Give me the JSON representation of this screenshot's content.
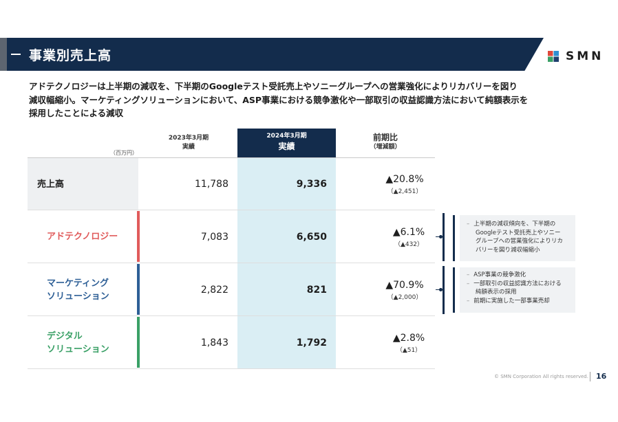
{
  "header": {
    "title": "事業別売上高"
  },
  "brand": {
    "name": "SMN",
    "colors": [
      "#e0483b",
      "#2e8fd1",
      "#3aa066",
      "#1f3f6e"
    ]
  },
  "lead": [
    "アドテクノロジーは上半期の減収を、下半期のGoogleテスト受託売上やソニーグループへの営業強化によりリカバリーを図り",
    "減収幅縮小。マーケティングソリューションにおいて、ASP事業における競争激化や一部取引の収益認識方法において純額表示を",
    "採用したことによる減収"
  ],
  "table": {
    "unit": "（百万円）",
    "col1": {
      "line1": "2023年3月期",
      "line2": "実績"
    },
    "col2": {
      "line1": "2024年3月期",
      "line2": "実績"
    },
    "col3": {
      "line1": "前期比",
      "line2": "（増減額）"
    },
    "rows": [
      {
        "label1": "売上高",
        "label2": "",
        "prev": "11,788",
        "curr": "9,336",
        "pct": "▲20.8%",
        "diff": "（▲2,451）",
        "color": "#1e1e1e"
      },
      {
        "label1": "アドテクノロジー",
        "label2": "",
        "prev": "7,083",
        "curr": "6,650",
        "pct": "▲6.1%",
        "diff": "（▲432）",
        "color": "#e05b5b"
      },
      {
        "label1": "マーケティング",
        "label2": "ソリューション",
        "prev": "2,822",
        "curr": "821",
        "pct": "▲70.9%",
        "diff": "（▲2,000）",
        "color": "#2e5f96"
      },
      {
        "label1": "デジタル",
        "label2": "ソリューション",
        "prev": "1,843",
        "curr": "1,792",
        "pct": "▲2.8%",
        "diff": "（▲51）",
        "color": "#3aa066"
      }
    ]
  },
  "notes": {
    "adtech": [
      "上半期の減収傾向を、下半期の",
      "Googleテスト受託売上やソニー",
      "グループへの営業強化によりリカ",
      "バリーを図り減収幅縮小"
    ],
    "marketing": [
      "ASP事業の競争激化",
      "一部取引の収益認識方法における",
      "純額表示の採用",
      "前期に実施した一部事業売却"
    ]
  },
  "footer": {
    "copyright": "© SMN Corporation All rights reserved.",
    "page": "16"
  }
}
